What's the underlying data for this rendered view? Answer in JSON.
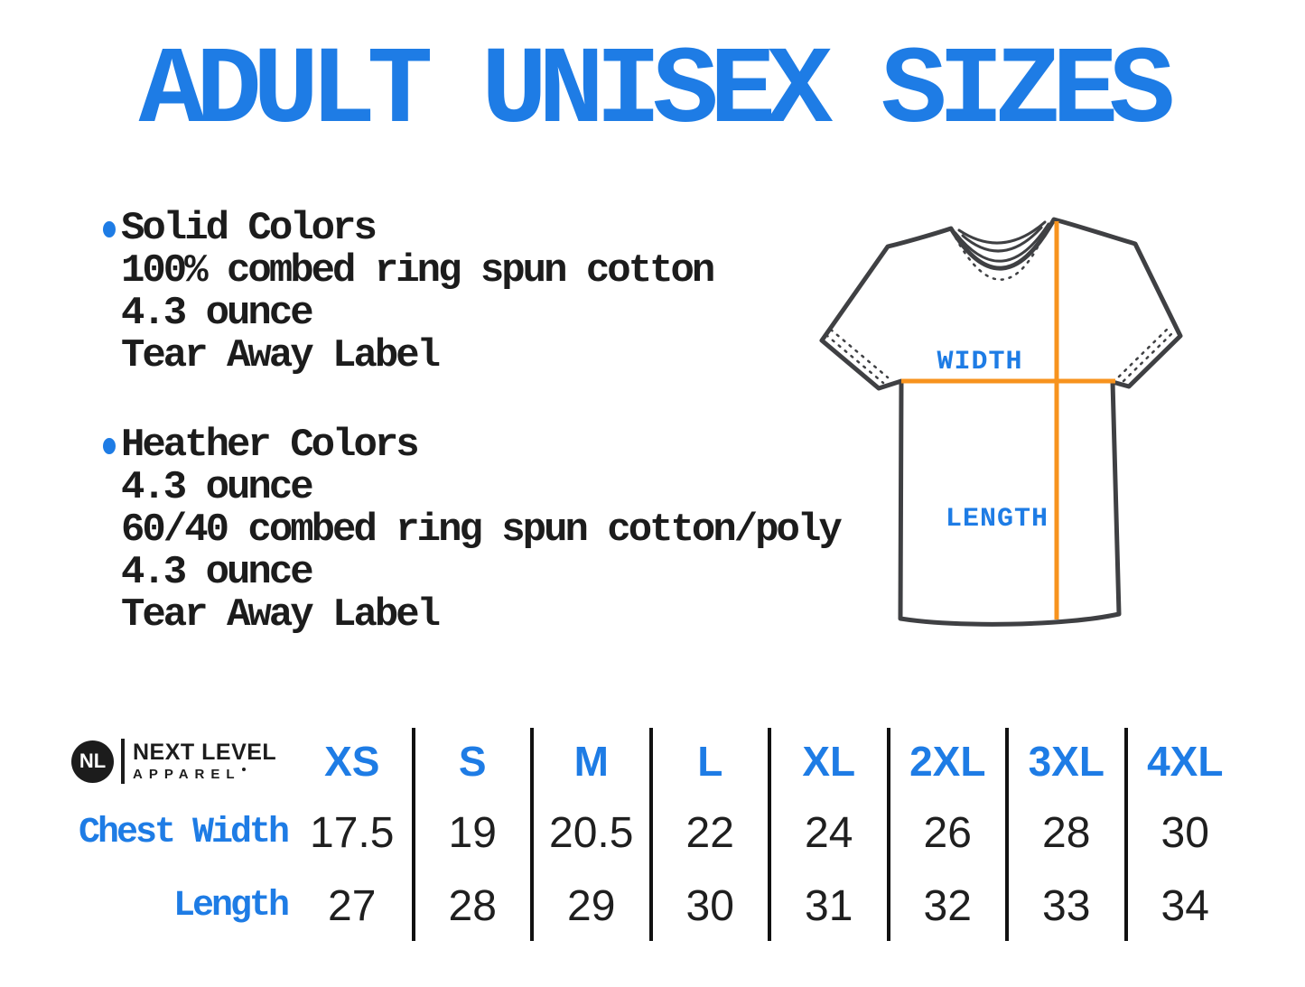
{
  "title": "ADULT UNISEX SIZES",
  "specs": [
    {
      "heading": "Solid Colors",
      "lines": [
        "100% combed ring spun cotton",
        "4.3 ounce",
        "Tear Away Label"
      ]
    },
    {
      "heading": "Heather Colors",
      "lines": [
        "4.3 ounce",
        "60/40 combed ring spun cotton/poly",
        "4.3 ounce",
        "Tear Away Label"
      ]
    }
  ],
  "diagram": {
    "width_label": "WIDTH",
    "length_label": "LENGTH"
  },
  "logo": {
    "monogram": "NL",
    "name": "NEXT LEVEL",
    "sub": "APPAREL"
  },
  "chart_data": {
    "type": "table",
    "title": "ADULT UNISEX SIZES",
    "columns": [
      "XS",
      "S",
      "M",
      "L",
      "XL",
      "2XL",
      "3XL",
      "4XL"
    ],
    "rows": [
      {
        "label": "Chest Width",
        "values": [
          17.5,
          19,
          20.5,
          22,
          24,
          26,
          28,
          30
        ]
      },
      {
        "label": "Length",
        "values": [
          27,
          28,
          29,
          30,
          31,
          32,
          33,
          34
        ]
      }
    ]
  },
  "colors": {
    "blue": "#1e7ce5",
    "orange": "#f7931e",
    "ink": "#1c1c1c",
    "shirt_outline": "#3f4043"
  }
}
